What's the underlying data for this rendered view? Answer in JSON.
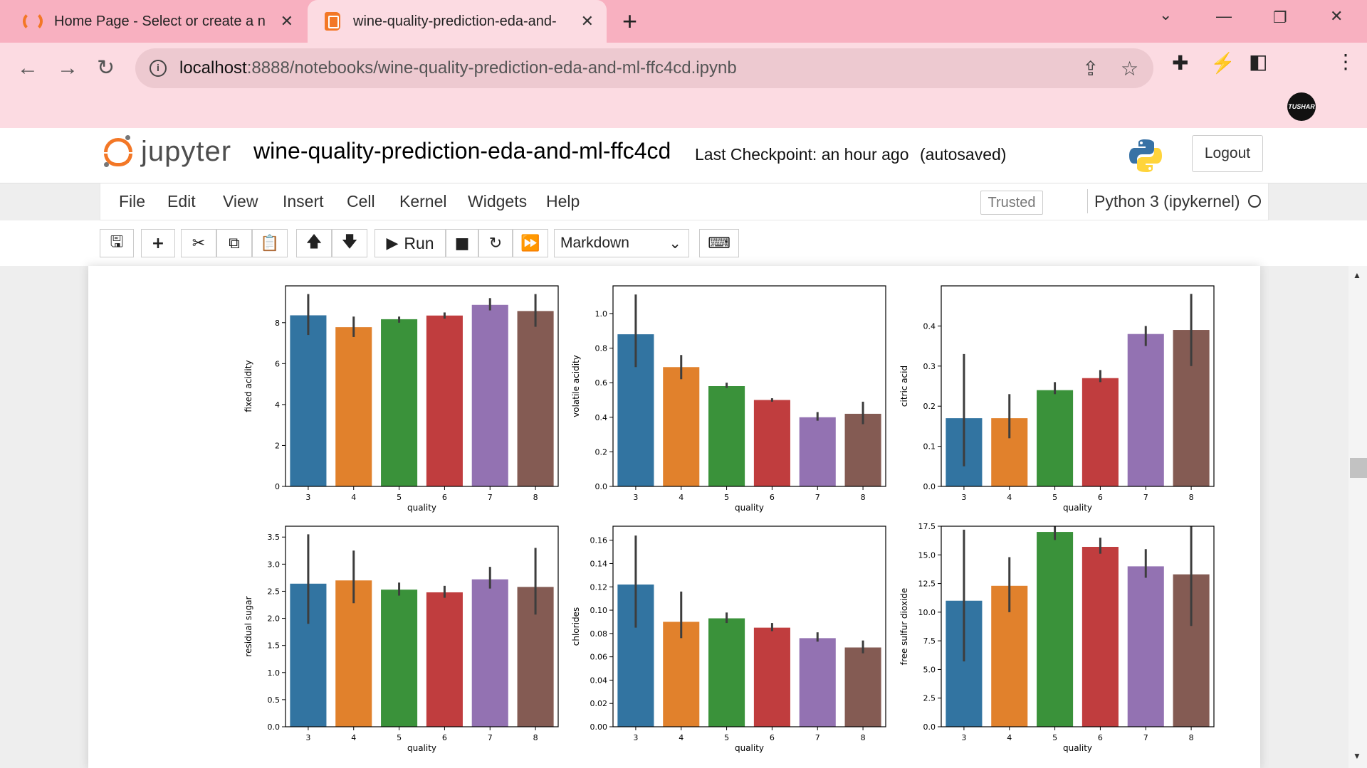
{
  "browser": {
    "tabs": [
      {
        "title": "Home Page - Select or create a n"
      },
      {
        "title": "wine-quality-prediction-eda-and-"
      }
    ],
    "url_host": "localhost",
    "url_path": ":8888/notebooks/wine-quality-prediction-eda-and-ml-ffc4cd.ipynb",
    "profile_label": "TUSHAR"
  },
  "jupyter": {
    "logo_text": "jupyter",
    "notebook_name": "wine-quality-prediction-eda-and-ml-ffc4cd",
    "checkpoint": "Last Checkpoint: an hour ago",
    "autosaved": "(autosaved)",
    "logout_label": "Logout",
    "menus": [
      "File",
      "Edit",
      "View",
      "Insert",
      "Cell",
      "Kernel",
      "Widgets",
      "Help"
    ],
    "trusted_label": "Trusted",
    "kernel_name": "Python 3 (ipykernel)",
    "toolbar": {
      "run_label": "Run",
      "cell_type": "Markdown"
    }
  },
  "colors": {
    "c3": "#3274a1",
    "c4": "#e1812c",
    "c5": "#3a923a",
    "c6": "#c03d3e",
    "c7": "#9372b2",
    "c8": "#845b53"
  },
  "chart_data": [
    {
      "type": "bar",
      "categories": [
        "3",
        "4",
        "5",
        "6",
        "7",
        "8"
      ],
      "xlabel": "quality",
      "ylabel": "fixed acidity",
      "values": [
        8.36,
        7.78,
        8.17,
        8.35,
        8.87,
        8.57
      ],
      "err_low": [
        7.4,
        7.3,
        8.0,
        8.2,
        8.6,
        7.8
      ],
      "err_high": [
        9.4,
        8.3,
        8.3,
        8.5,
        9.2,
        9.4
      ],
      "ylim": [
        0,
        9.8
      ],
      "yticks": [
        0,
        2,
        4,
        6,
        8
      ],
      "ytick_labels": [
        "0",
        "2",
        "4",
        "6",
        "8"
      ]
    },
    {
      "type": "bar",
      "categories": [
        "3",
        "4",
        "5",
        "6",
        "7",
        "8"
      ],
      "xlabel": "quality",
      "ylabel": "volatile acidity",
      "values": [
        0.88,
        0.69,
        0.58,
        0.5,
        0.4,
        0.42
      ],
      "err_low": [
        0.69,
        0.62,
        0.57,
        0.49,
        0.38,
        0.36
      ],
      "err_high": [
        1.11,
        0.76,
        0.6,
        0.51,
        0.43,
        0.49
      ],
      "ylim": [
        0,
        1.16
      ],
      "yticks": [
        0,
        0.2,
        0.4,
        0.6,
        0.8,
        1.0
      ],
      "ytick_labels": [
        "0.0",
        "0.2",
        "0.4",
        "0.6",
        "0.8",
        "1.0"
      ]
    },
    {
      "type": "bar",
      "categories": [
        "3",
        "4",
        "5",
        "6",
        "7",
        "8"
      ],
      "xlabel": "quality",
      "ylabel": "citric acid",
      "values": [
        0.17,
        0.17,
        0.24,
        0.27,
        0.38,
        0.39
      ],
      "err_low": [
        0.05,
        0.12,
        0.23,
        0.26,
        0.35,
        0.3
      ],
      "err_high": [
        0.33,
        0.23,
        0.26,
        0.29,
        0.4,
        0.48
      ],
      "ylim": [
        0,
        0.5
      ],
      "yticks": [
        0,
        0.1,
        0.2,
        0.3,
        0.4
      ],
      "ytick_labels": [
        "0.0",
        "0.1",
        "0.2",
        "0.3",
        "0.4"
      ]
    },
    {
      "type": "bar",
      "categories": [
        "3",
        "4",
        "5",
        "6",
        "7",
        "8"
      ],
      "xlabel": "quality",
      "ylabel": "residual sugar",
      "values": [
        2.64,
        2.7,
        2.53,
        2.48,
        2.72,
        2.58
      ],
      "err_low": [
        1.9,
        2.28,
        2.42,
        2.38,
        2.55,
        2.07
      ],
      "err_high": [
        3.55,
        3.25,
        2.66,
        2.6,
        2.95,
        3.3
      ],
      "ylim": [
        0,
        3.7
      ],
      "yticks": [
        0,
        0.5,
        1.0,
        1.5,
        2.0,
        2.5,
        3.0,
        3.5
      ],
      "ytick_labels": [
        "0.0",
        "0.5",
        "1.0",
        "1.5",
        "2.0",
        "2.5",
        "3.0",
        "3.5"
      ]
    },
    {
      "type": "bar",
      "categories": [
        "3",
        "4",
        "5",
        "6",
        "7",
        "8"
      ],
      "xlabel": "quality",
      "ylabel": "chlorides",
      "values": [
        0.122,
        0.09,
        0.093,
        0.085,
        0.076,
        0.068
      ],
      "err_low": [
        0.085,
        0.076,
        0.089,
        0.082,
        0.073,
        0.063
      ],
      "err_high": [
        0.164,
        0.116,
        0.098,
        0.089,
        0.081,
        0.074
      ],
      "ylim": [
        0,
        0.172
      ],
      "yticks": [
        0,
        0.02,
        0.04,
        0.06,
        0.08,
        0.1,
        0.12,
        0.14,
        0.16
      ],
      "ytick_labels": [
        "0.00",
        "0.02",
        "0.04",
        "0.06",
        "0.08",
        "0.10",
        "0.12",
        "0.14",
        "0.16"
      ]
    },
    {
      "type": "bar",
      "categories": [
        "3",
        "4",
        "5",
        "6",
        "7",
        "8"
      ],
      "xlabel": "quality",
      "ylabel": "free sulfur dioxide",
      "values": [
        11.0,
        12.3,
        17.0,
        15.7,
        14.0,
        13.3
      ],
      "err_low": [
        5.7,
        10.0,
        16.3,
        15.1,
        13.0,
        8.8
      ],
      "err_high": [
        17.2,
        14.8,
        17.8,
        16.5,
        15.5,
        18.6
      ],
      "ylim": [
        0,
        17.5
      ],
      "yticks": [
        0,
        2.5,
        5.0,
        7.5,
        10.0,
        12.5,
        15.0,
        17.5
      ],
      "ytick_labels": [
        "0.0",
        "2.5",
        "5.0",
        "7.5",
        "10.0",
        "12.5",
        "15.0",
        "17.5"
      ]
    }
  ]
}
